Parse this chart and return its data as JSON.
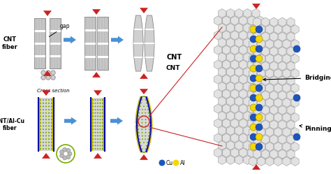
{
  "bg_color": "#ffffff",
  "fig_width": 4.74,
  "fig_height": 2.49,
  "labels": {
    "cnt_fiber": "CNT\nfiber",
    "cnt_al_cu": "CNT/Al-Cu\nfiber",
    "cross_section": "Cross section",
    "gap": "gap",
    "cnt": "CNT",
    "cu": "Cu",
    "al": "Al",
    "bridging": "Bridging",
    "pinning": "Pinning"
  },
  "colors": {
    "gray_fiber": "#d0d0d0",
    "blue_arrow": "#4a90d4",
    "red_arrow": "#cc2222",
    "blue_dot": "#1a56bb",
    "yellow_dot": "#f5d800",
    "green_dot": "#7aaa00",
    "dark_blue_line": "#0000aa",
    "yellow_line": "#ccbb00",
    "fiber_stripe": "#aaaaaa",
    "black": "#000000",
    "white": "#ffffff",
    "hex_fill": "#e2e2e2",
    "hex_edge": "#999999"
  }
}
